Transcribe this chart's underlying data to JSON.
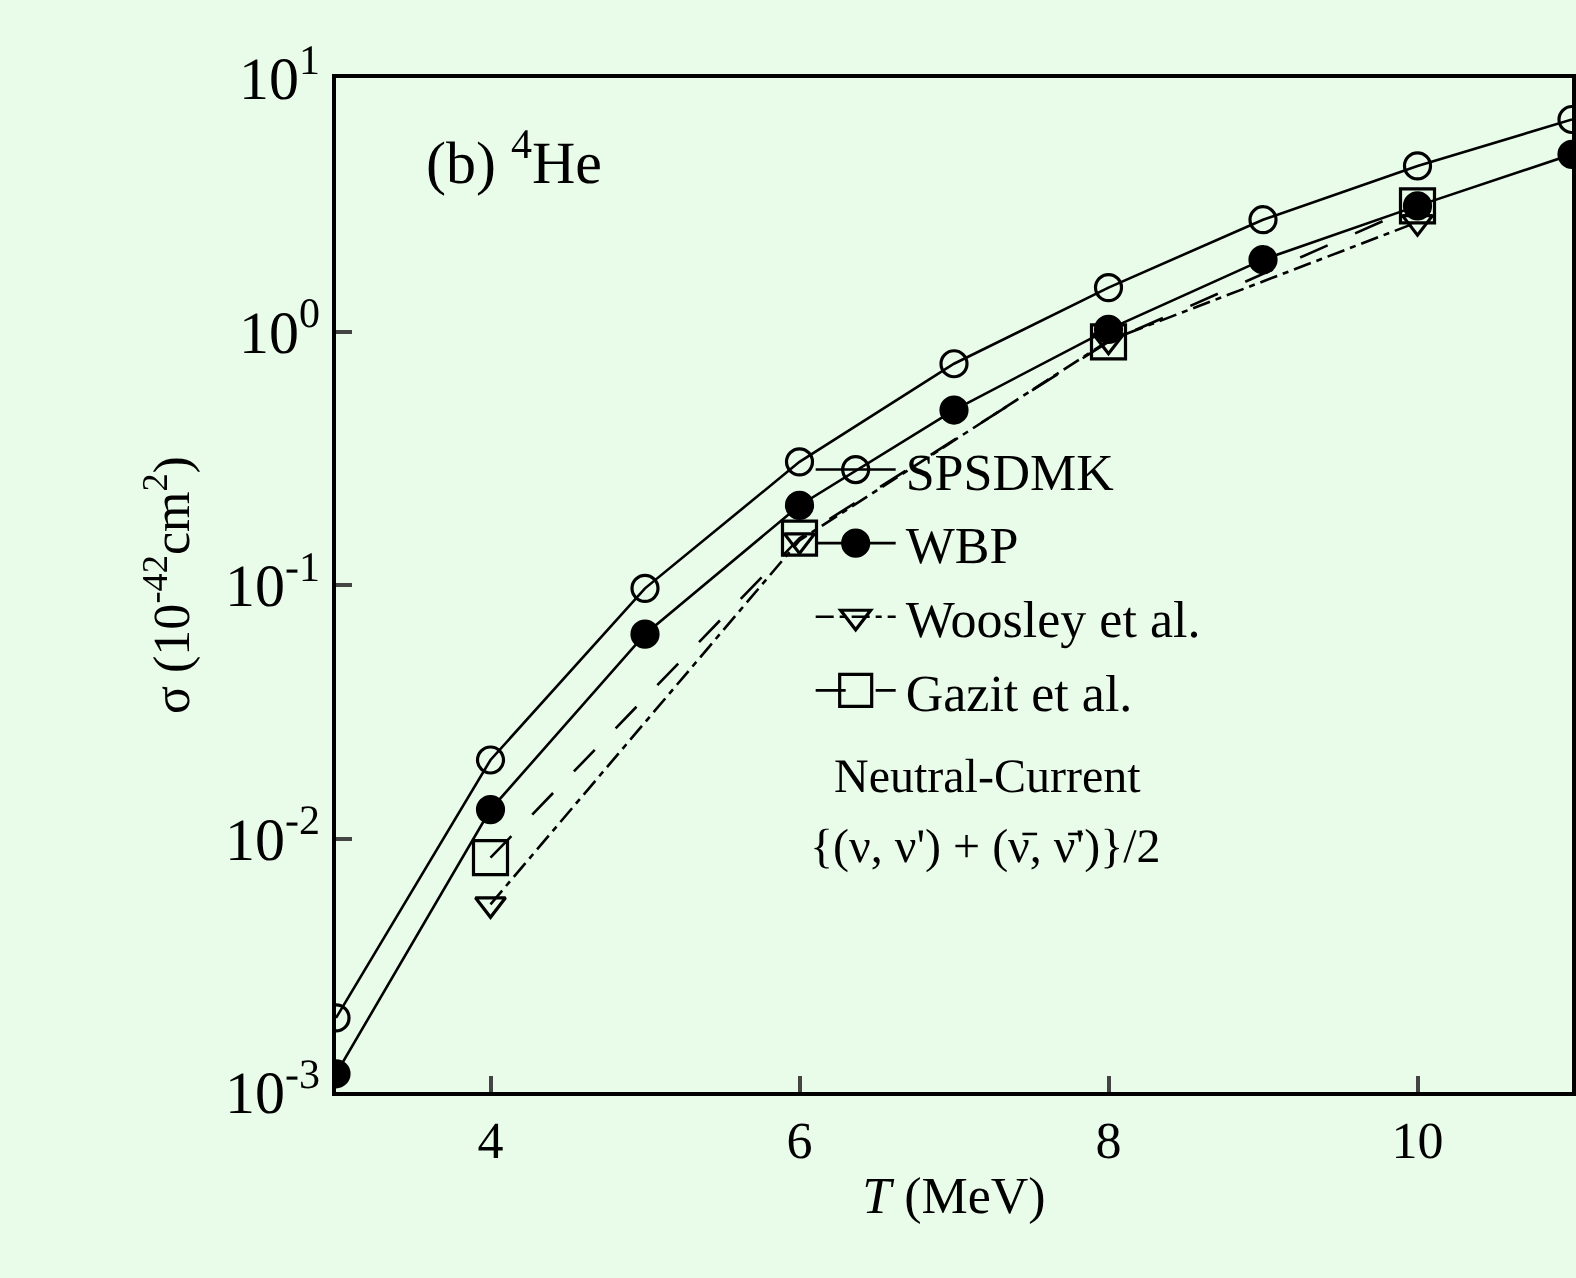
{
  "chart_data": {
    "type": "line",
    "xlabel": "T (MeV)",
    "ylabel": "σ (10$^{-42}$cm$^{2}$)",
    "x": [
      3,
      4,
      5,
      6,
      7,
      8,
      9,
      10,
      11
    ],
    "series": [
      {
        "name": "SPSDMK",
        "color": "#000000",
        "marker": "circle-open",
        "line_style": "solid",
        "values": [
          0.00196,
          0.0204,
          0.097,
          0.306,
          0.746,
          1.49,
          2.76,
          4.5,
          6.86
        ]
      },
      {
        "name": "WBP",
        "color": "#000000",
        "marker": "circle",
        "line_style": "solid",
        "values": [
          0.00118,
          0.013,
          0.064,
          0.206,
          0.49,
          1.02,
          1.92,
          3.13,
          5.0
        ]
      },
      {
        "name": "Woosley et al.",
        "color": "#000000",
        "marker": "triangle-down-open",
        "line_style": "dotted",
        "x": [
          4,
          6,
          8,
          10
        ],
        "values": [
          0.0055,
          0.15,
          0.92,
          2.7
        ]
      },
      {
        "name": "Gazit et al.",
        "color": "#000000",
        "marker": "square-open",
        "line_style": "dashed",
        "x": [
          4,
          6,
          8,
          10
        ],
        "values": [
          0.0084,
          0.153,
          0.91,
          3.13
        ]
      }
    ],
    "annotations": [
      "(b) $^{4}$He",
      "Neutral-Current",
      "{(ν, ν') + (ν̄, ν̄')}/2"
    ],
    "log": "y",
    "xlim": [
      3,
      11
    ],
    "xticks": [
      4,
      6,
      8,
      10
    ],
    "ylim": [
      0.001,
      10
    ],
    "yticks": [
      {
        "value": 0.001,
        "label": "10$^{-3}$"
      },
      {
        "value": 0.01,
        "label": "10$^{-2}$"
      },
      {
        "value": 0.1,
        "label": "10$^{-1}$"
      },
      {
        "value": 1,
        "label": "10$^{0}$"
      },
      {
        "value": 10,
        "label": "10$^{1}$"
      }
    ],
    "grid": false,
    "legend": "right"
  }
}
